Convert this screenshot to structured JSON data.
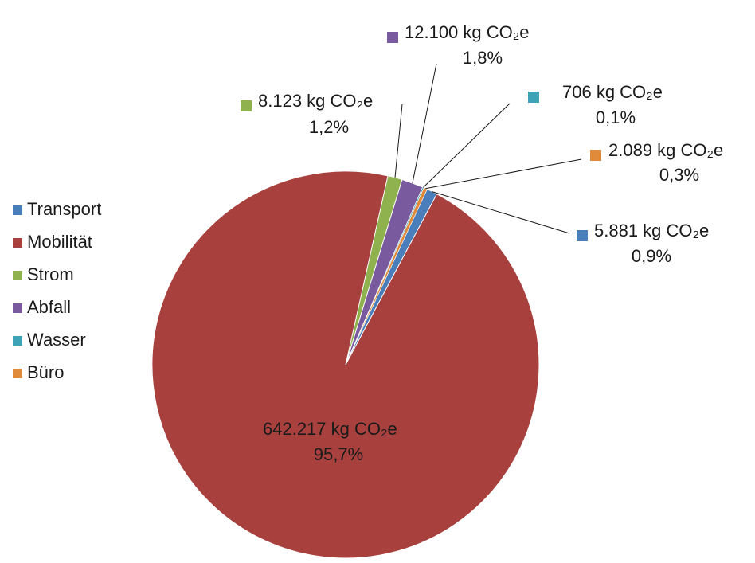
{
  "chart_data": {
    "type": "pie",
    "unit": "kg CO₂e",
    "legend_position": "left",
    "slices": [
      {
        "name": "Transport",
        "value": 5881,
        "value_label": "5.881",
        "percent_label": "0,9%",
        "color": "#4a7ebb"
      },
      {
        "name": "Mobilität",
        "value": 642217,
        "value_label": "642.217",
        "percent_label": "95,7%",
        "color": "#a8403e"
      },
      {
        "name": "Strom",
        "value": 8123,
        "value_label": "8.123",
        "percent_label": "1,2%",
        "color": "#8fb14e"
      },
      {
        "name": "Abfall",
        "value": 12100,
        "value_label": "12.100",
        "percent_label": "1,8%",
        "color": "#7a5a9e"
      },
      {
        "name": "Wasser",
        "value": 706,
        "value_label": "706",
        "percent_label": "0,1%",
        "color": "#3fa3b8"
      },
      {
        "name": "Büro",
        "value": 2089,
        "value_label": "2.089",
        "percent_label": "0,3%",
        "color": "#e08a3c"
      }
    ]
  }
}
